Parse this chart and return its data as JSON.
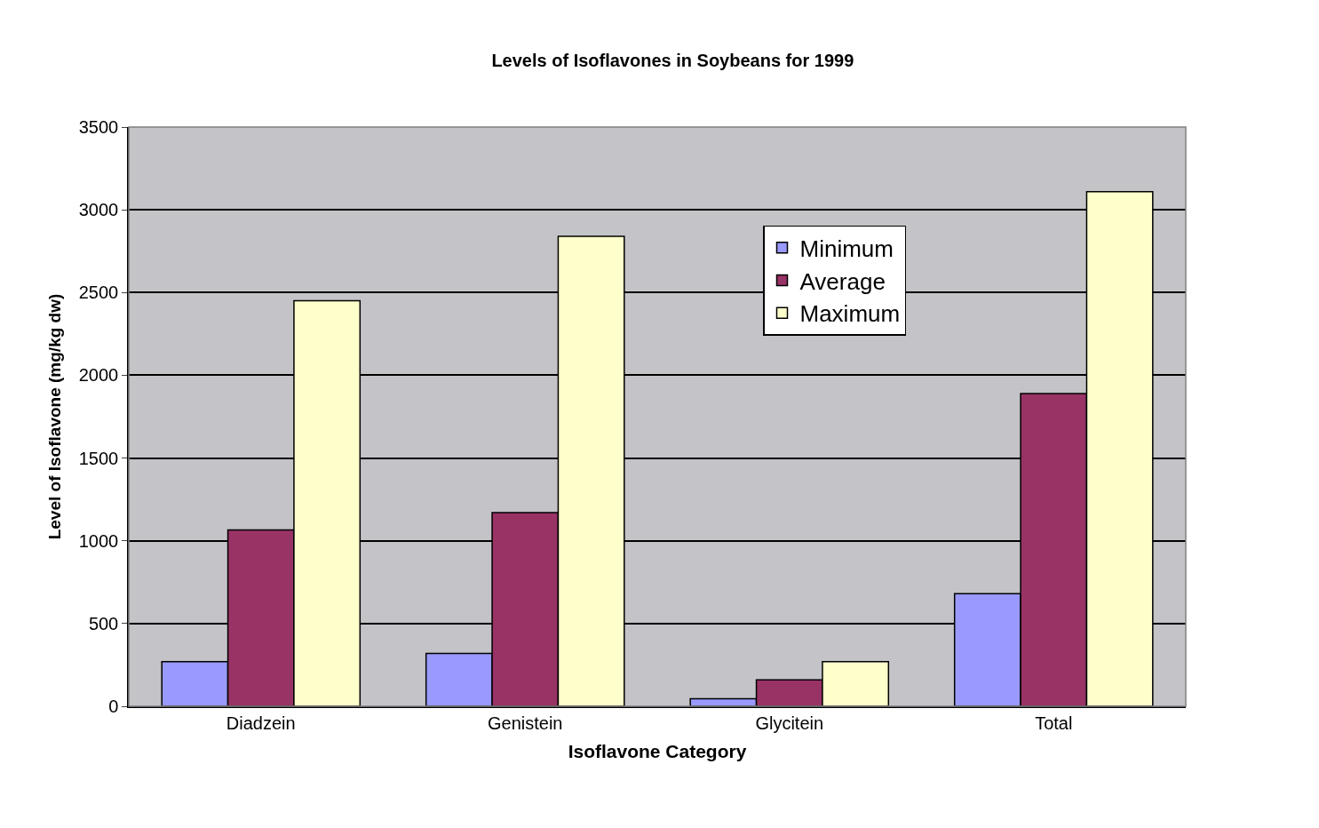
{
  "chart_data": {
    "type": "bar",
    "title": "Levels of Isoflavones in Soybeans for 1999",
    "xlabel": "Isoflavone Category",
    "ylabel": "Level of Isoflavone (mg/kg dw)",
    "categories": [
      "Diadzein",
      "Genistein",
      "Glycitein",
      "Total"
    ],
    "series": [
      {
        "name": "Minimum",
        "color": "#9999ff",
        "values": [
          270,
          320,
          45,
          680
        ]
      },
      {
        "name": "Average",
        "color": "#993366",
        "values": [
          1065,
          1170,
          160,
          1890
        ]
      },
      {
        "name": "Maximum",
        "color": "#ffffcc",
        "values": [
          2450,
          2840,
          270,
          3110
        ]
      }
    ],
    "ylim": [
      0,
      3500
    ],
    "yticks": [
      0,
      500,
      1000,
      1500,
      2000,
      2500,
      3000,
      3500
    ],
    "grid": "y",
    "legend": "top right"
  }
}
